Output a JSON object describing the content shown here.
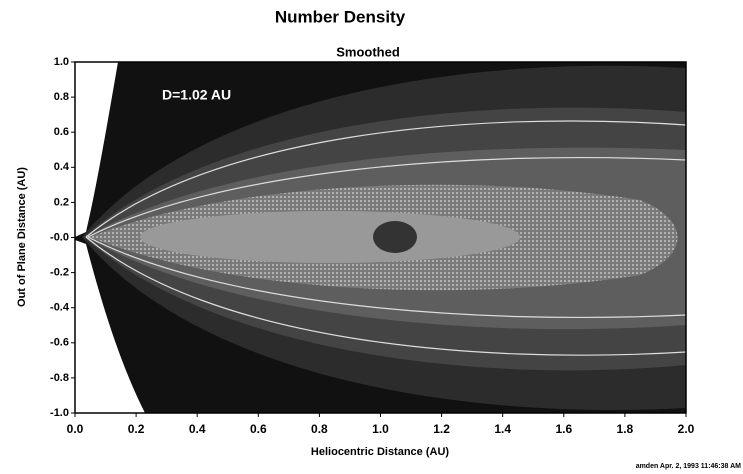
{
  "chart_data": {
    "type": "contour",
    "title": "Number Density",
    "subtitle": "Smoothed",
    "annotation": "D=1.02 AU",
    "x_label": "Heliocentric Distance (AU)",
    "y_label": "Out of Plane Distance (AU)",
    "footer": "amden  Apr. 2, 1993  11:46:38 AM",
    "xlim": [
      0,
      2
    ],
    "ylim": [
      -1,
      1
    ],
    "xticks": [
      {
        "value": 0,
        "label": "0.0"
      },
      0.2,
      0.4,
      0.6,
      0.8,
      {
        "value": 1,
        "label": "1.0"
      },
      1.2,
      1.4,
      1.6,
      1.8,
      {
        "value": 2,
        "label": "2.0"
      }
    ],
    "yticks": [
      {
        "value": 1,
        "label": "1.0"
      },
      0.8,
      0.6,
      0.4,
      0.2,
      {
        "value": 0,
        "label": "-0.0"
      },
      -0.2,
      -0.4,
      -0.6,
      -0.8,
      {
        "value": -1,
        "label": "-1.0"
      }
    ]
  }
}
